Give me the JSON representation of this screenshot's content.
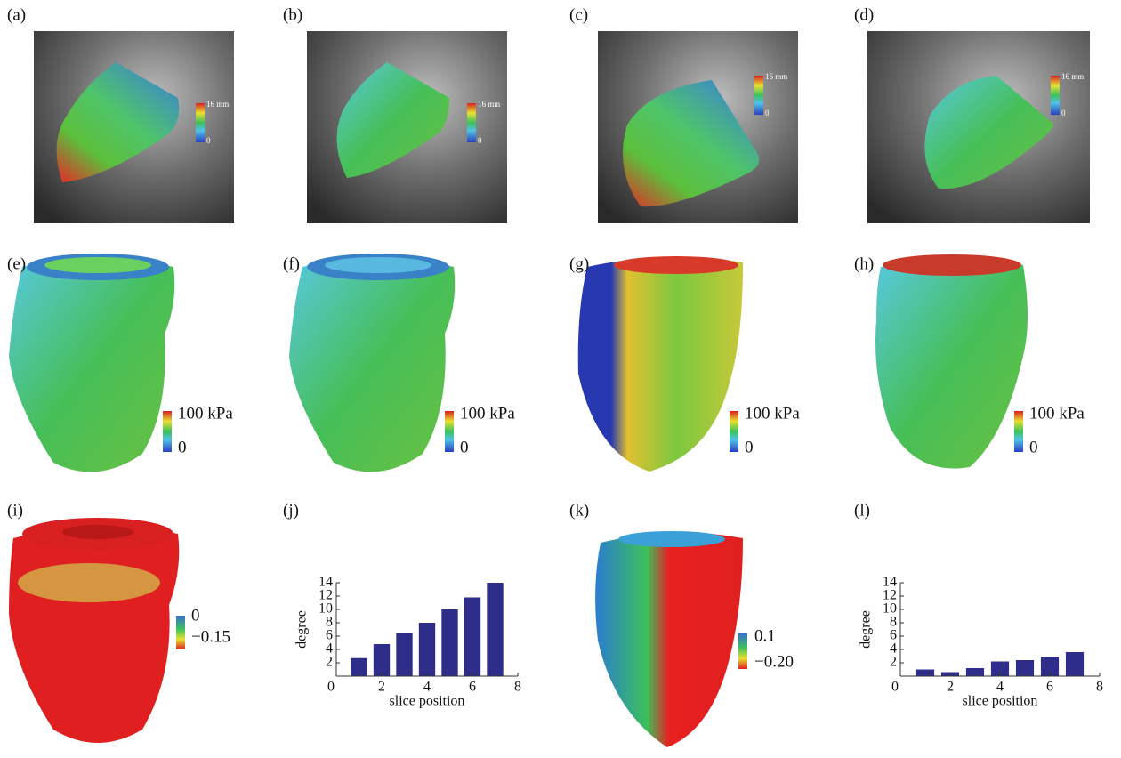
{
  "panels": [
    "(a)",
    "(b)",
    "(c)",
    "(d)",
    "(e)",
    "(f)",
    "(g)",
    "(h)",
    "(i)",
    "(j)",
    "(k)",
    "(l)"
  ],
  "colorbars": [
    {
      "panel": "(a)",
      "max": "16 mm",
      "min": "0"
    },
    {
      "panel": "(b)",
      "max": "16 mm",
      "min": "0"
    },
    {
      "panel": "(c)",
      "max": "16 mm",
      "min": "0"
    },
    {
      "panel": "(d)",
      "max": "16 mm",
      "min": "0"
    },
    {
      "panel": "(e)",
      "max": "100 kPa",
      "min": "0"
    },
    {
      "panel": "(f)",
      "max": "100 kPa",
      "min": "0"
    },
    {
      "panel": "(g)",
      "max": "100 kPa",
      "min": "0"
    },
    {
      "panel": "(h)",
      "max": "100 kPa",
      "min": "0"
    },
    {
      "panel": "(i)",
      "max": "0",
      "min": "−0.15"
    },
    {
      "panel": "(k)",
      "max": "0.1",
      "min": "−0.20"
    }
  ],
  "chart_data": [
    {
      "type": "bar",
      "x": [
        1,
        2,
        3,
        4,
        5,
        6,
        7
      ],
      "values": [
        2.7,
        4.8,
        6.4,
        8.0,
        10.0,
        11.8,
        14.0
      ],
      "color": "#2e2e8a",
      "xlim": [
        0,
        8
      ],
      "xticks": [
        0,
        2,
        4,
        6,
        8
      ],
      "ylim": [
        0,
        14
      ],
      "yticks": [
        2,
        4,
        6,
        8,
        10,
        12,
        14
      ],
      "xlabel": "slice position",
      "ylabel": "degree"
    },
    {
      "type": "bar",
      "x": [
        1,
        2,
        3,
        4,
        5,
        6,
        7
      ],
      "values": [
        1.0,
        0.6,
        1.2,
        2.2,
        2.4,
        2.9,
        3.6
      ],
      "color": "#2e2e8a",
      "xlim": [
        0,
        8
      ],
      "xticks": [
        0,
        2,
        4,
        6,
        8
      ],
      "ylim": [
        0,
        14
      ],
      "yticks": [
        2,
        4,
        6,
        8,
        10,
        12,
        14
      ],
      "xlabel": "slice position",
      "ylabel": "degree"
    }
  ]
}
